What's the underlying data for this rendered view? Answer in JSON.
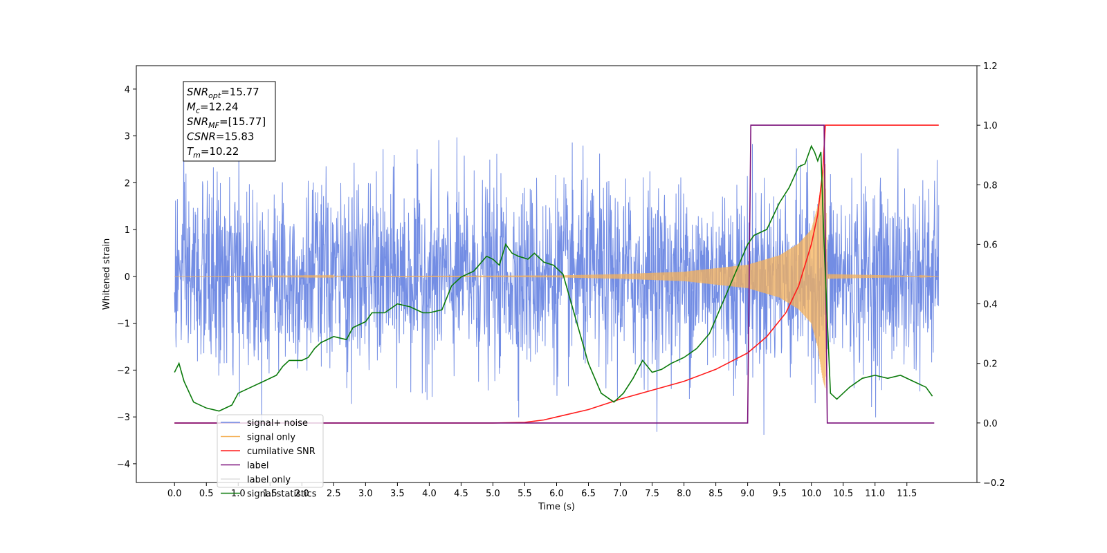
{
  "chart_data": {
    "type": "line",
    "xlabel": "Time (s)",
    "ylabel_left": "Whitened strain",
    "ylabel_right": "",
    "xlim": [
      -0.6,
      12.6
    ],
    "ylim_left": [
      -4.4,
      4.5
    ],
    "ylim_right": [
      -0.2,
      1.2
    ],
    "x_ticks": [
      0.0,
      0.5,
      1.0,
      1.5,
      2.0,
      2.5,
      3.0,
      3.5,
      4.0,
      4.5,
      5.0,
      5.5,
      6.0,
      6.5,
      7.0,
      7.5,
      8.0,
      8.5,
      9.0,
      9.5,
      10.0,
      10.5,
      11.0,
      11.5
    ],
    "x_tick_labels": [
      "0.0",
      "0.5",
      "1.0",
      "1.5",
      "2.0",
      "2.5",
      "3.0",
      "3.5",
      "4.0",
      "4.5",
      "5.0",
      "5.5",
      "6.0",
      "6.5",
      "7.0",
      "7.5",
      "8.0",
      "8.5",
      "9.0",
      "9.5",
      "10.0",
      "10.5",
      "11.0",
      "11.5"
    ],
    "y_left_ticks": [
      -4,
      -3,
      -2,
      -1,
      0,
      1,
      2,
      3,
      4
    ],
    "y_left_tick_labels": [
      "−4",
      "−3",
      "−2",
      "−1",
      "0",
      "1",
      "2",
      "3",
      "4"
    ],
    "y_right_ticks": [
      -0.2,
      0.0,
      0.2,
      0.4,
      0.6,
      0.8,
      1.0,
      1.2
    ],
    "y_right_tick_labels": [
      "−0.2",
      "0.0",
      "0.2",
      "0.4",
      "0.6",
      "0.8",
      "1.0",
      "1.2"
    ],
    "grid": false,
    "legend_position": "bottom-left",
    "series": [
      {
        "name": "signal+ noise",
        "axis": "left",
        "color": "#6b87e3",
        "kind": "noise",
        "x_range": [
          0.0,
          12.0
        ],
        "typical_std": 1.0,
        "max": 4.1,
        "min": -3.9
      },
      {
        "name": "signal only",
        "axis": "left",
        "color": "#f5b25a",
        "kind": "chirp",
        "x_range": [
          0.0,
          12.0
        ],
        "merger_time": 10.22,
        "envelope": [
          [
            0.0,
            0.0
          ],
          [
            6.0,
            0.02
          ],
          [
            7.0,
            0.05
          ],
          [
            8.0,
            0.1
          ],
          [
            9.0,
            0.25
          ],
          [
            9.5,
            0.45
          ],
          [
            9.8,
            0.7
          ],
          [
            10.0,
            1.0
          ],
          [
            10.1,
            1.5
          ],
          [
            10.18,
            2.2
          ],
          [
            10.22,
            2.4
          ],
          [
            10.25,
            0.05
          ],
          [
            12.0,
            0.0
          ]
        ]
      },
      {
        "name": "cumilative SNR",
        "axis": "right",
        "color": "#ff1a1a",
        "x": [
          0.0,
          5.0,
          5.5,
          5.8,
          6.0,
          6.5,
          7.0,
          7.5,
          8.0,
          8.5,
          9.0,
          9.3,
          9.6,
          9.8,
          10.0,
          10.1,
          10.18,
          10.22,
          12.0
        ],
        "y": [
          0.0,
          0.0,
          0.002,
          0.01,
          0.02,
          0.045,
          0.08,
          0.11,
          0.14,
          0.18,
          0.235,
          0.29,
          0.37,
          0.46,
          0.6,
          0.7,
          0.85,
          1.0,
          1.0
        ]
      },
      {
        "name": "label",
        "axis": "right",
        "color": "#7a0f7a",
        "x": [
          0.0,
          9.0,
          9.05,
          10.2,
          10.25,
          11.93
        ],
        "y": [
          0.0,
          0.0,
          1.0,
          1.0,
          0.0,
          0.0
        ]
      },
      {
        "name": "label only",
        "axis": "right",
        "color": "#bbbbbb",
        "x": [],
        "y": []
      },
      {
        "name": "signal statistics",
        "axis": "right",
        "color": "#0a7a0a",
        "x": [
          0.0,
          0.07,
          0.15,
          0.3,
          0.5,
          0.7,
          0.9,
          1.0,
          1.2,
          1.4,
          1.6,
          1.7,
          1.8,
          2.0,
          2.1,
          2.2,
          2.3,
          2.5,
          2.7,
          2.8,
          3.0,
          3.1,
          3.3,
          3.5,
          3.7,
          3.9,
          4.0,
          4.2,
          4.35,
          4.5,
          4.7,
          4.9,
          5.0,
          5.1,
          5.2,
          5.3,
          5.4,
          5.55,
          5.65,
          5.8,
          5.95,
          6.1,
          6.3,
          6.5,
          6.7,
          6.9,
          7.05,
          7.2,
          7.35,
          7.5,
          7.65,
          7.8,
          8.0,
          8.2,
          8.4,
          8.6,
          8.8,
          9.0,
          9.1,
          9.3,
          9.5,
          9.65,
          9.8,
          9.9,
          10.0,
          10.05,
          10.1,
          10.15,
          10.2,
          10.3,
          10.4,
          10.6,
          10.8,
          11.0,
          11.2,
          11.4,
          11.6,
          11.8,
          11.9
        ],
        "y": [
          0.17,
          0.2,
          0.14,
          0.07,
          0.05,
          0.04,
          0.06,
          0.1,
          0.12,
          0.14,
          0.16,
          0.19,
          0.21,
          0.21,
          0.22,
          0.25,
          0.27,
          0.29,
          0.28,
          0.32,
          0.34,
          0.37,
          0.37,
          0.4,
          0.39,
          0.37,
          0.37,
          0.38,
          0.46,
          0.49,
          0.51,
          0.56,
          0.55,
          0.53,
          0.6,
          0.57,
          0.56,
          0.55,
          0.57,
          0.54,
          0.53,
          0.5,
          0.35,
          0.2,
          0.1,
          0.07,
          0.1,
          0.15,
          0.21,
          0.17,
          0.18,
          0.2,
          0.22,
          0.25,
          0.3,
          0.4,
          0.5,
          0.6,
          0.63,
          0.65,
          0.74,
          0.79,
          0.86,
          0.87,
          0.93,
          0.91,
          0.88,
          0.91,
          0.6,
          0.1,
          0.08,
          0.12,
          0.15,
          0.16,
          0.15,
          0.16,
          0.14,
          0.12,
          0.09
        ]
      }
    ],
    "annotation_box": {
      "lines": [
        {
          "main": "SNR",
          "sub": "opt",
          "rest": "=15.77"
        },
        {
          "main": "M",
          "sub": "c",
          "rest": "=12.24"
        },
        {
          "main": "SNR",
          "sub": "MF",
          "rest": "=[15.77]"
        },
        {
          "main": "CSNR",
          "sub": "",
          "rest": "=15.83"
        },
        {
          "main": "T",
          "sub": "m",
          "rest": "=10.22"
        }
      ]
    }
  }
}
